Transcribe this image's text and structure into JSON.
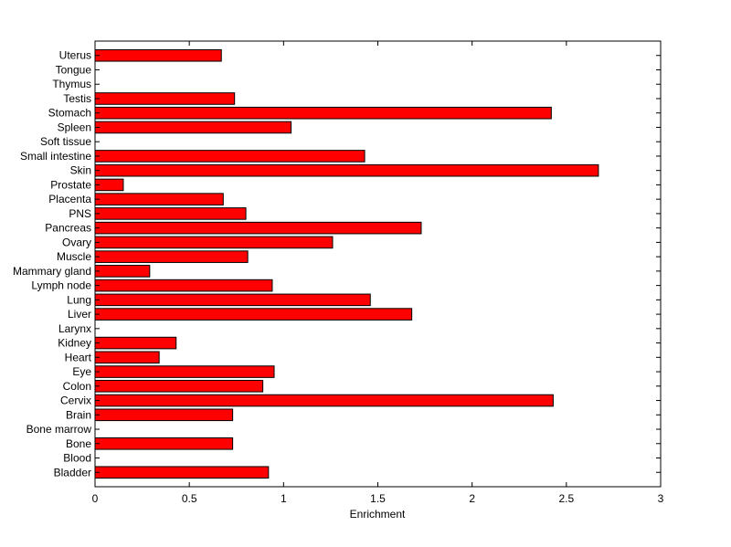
{
  "chart_data": {
    "type": "bar",
    "orientation": "horizontal",
    "title": "",
    "xlabel": "Enrichment",
    "ylabel": "",
    "xlim": [
      0,
      3
    ],
    "xticks": [
      "0",
      "0.5",
      "1",
      "1.5",
      "2",
      "2.5",
      "3"
    ],
    "grid": false,
    "legend": "none",
    "bar_color": "#ff0000",
    "bar_edge_color": "#000000",
    "categories": [
      "Bladder",
      "Blood",
      "Bone",
      "Bone marrow",
      "Brain",
      "Cervix",
      "Colon",
      "Eye",
      "Heart",
      "Kidney",
      "Larynx",
      "Liver",
      "Lung",
      "Lymph node",
      "Mammary gland",
      "Muscle",
      "Ovary",
      "Pancreas",
      "PNS",
      "Placenta",
      "Prostate",
      "Skin",
      "Small intestine",
      "Soft tissue",
      "Spleen",
      "Stomach",
      "Testis",
      "Thymus",
      "Tongue",
      "Uterus"
    ],
    "values": [
      0.92,
      0,
      0.73,
      0,
      0.73,
      2.43,
      0.89,
      0.95,
      0.34,
      0.43,
      0,
      1.68,
      1.46,
      0.94,
      0.29,
      0.81,
      1.26,
      1.73,
      0.8,
      0.68,
      0.15,
      2.67,
      1.43,
      0,
      1.04,
      2.42,
      0.74,
      0,
      0,
      0.67
    ]
  }
}
